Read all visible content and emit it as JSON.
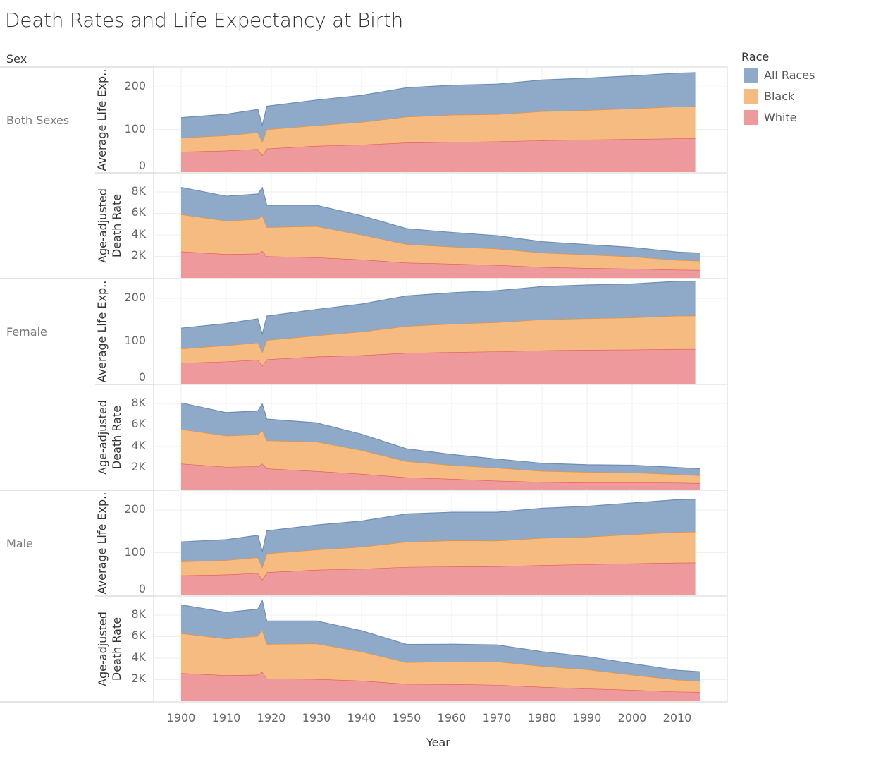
{
  "title": "Death Rates and Life Expectancy at Birth",
  "chart_data": {
    "type": "area",
    "stacked": true,
    "title": "Death Rates and Life Expectancy at Birth",
    "xlabel": "Year",
    "row_header": "Sex",
    "x_ticks": [
      "1900",
      "1910",
      "1920",
      "1930",
      "1940",
      "1950",
      "1960",
      "1970",
      "1980",
      "1990",
      "2000",
      "2010"
    ],
    "xlim": [
      1894,
      2026
    ],
    "legend": {
      "title": "Race",
      "placement": "top-right",
      "entries": [
        {
          "label": "All Races",
          "color": "#8fa9c8"
        },
        {
          "label": "Black",
          "color": "#f5bb80"
        },
        {
          "label": "White",
          "color": "#ee9a9c"
        }
      ]
    },
    "colors": {
      "All Races": {
        "fill": "#8fa9c8",
        "line": "#6e8db4"
      },
      "Black": {
        "fill": "#f5bb80",
        "line": "#f28e2b"
      },
      "White": {
        "fill": "#ee9a9c",
        "line": "#e15759"
      }
    },
    "measures": {
      "le": {
        "label": "Average Life Exp..",
        "ylim": [
          0,
          245
        ],
        "ticks": [
          {
            "v": 0,
            "t": "0"
          },
          {
            "v": 100,
            "t": "100"
          },
          {
            "v": 200,
            "t": "200"
          }
        ]
      },
      "dr": {
        "label1": "Age-adjusted",
        "label2": "Death Rate",
        "ylim": [
          0,
          9700
        ],
        "ticks": [
          {
            "v": 2000,
            "t": "2K"
          },
          {
            "v": 4000,
            "t": "4K"
          },
          {
            "v": 6000,
            "t": "6K"
          },
          {
            "v": 8000,
            "t": "8K"
          }
        ]
      }
    },
    "years_le": [
      1900,
      1910,
      1917,
      1918,
      1919,
      1930,
      1940,
      1950,
      1960,
      1970,
      1980,
      1990,
      2000,
      2010,
      2014
    ],
    "years_dr": [
      1900,
      1910,
      1917,
      1918,
      1919,
      1930,
      1940,
      1950,
      1960,
      1970,
      1980,
      1990,
      2000,
      2010,
      2015
    ],
    "panels": [
      {
        "sex": "Both Sexes",
        "measure": "le",
        "series": {
          "White": [
            47.6,
            50.3,
            54,
            39.8,
            55,
            61.4,
            64.2,
            69.1,
            70.6,
            71.7,
            74.4,
            76.1,
            77.3,
            78.9,
            79
          ],
          "Black": [
            33,
            35.6,
            39,
            31,
            45,
            48.1,
            53.1,
            60.8,
            63.6,
            64.1,
            68.1,
            69.1,
            71.8,
            74.7,
            75.6
          ],
          "All Races": [
            47.3,
            50,
            54,
            39.1,
            54.7,
            59.7,
            62.9,
            68.2,
            69.7,
            70.8,
            73.7,
            75.4,
            76.8,
            78.7,
            78.9
          ]
        }
      },
      {
        "sex": "Both Sexes",
        "measure": "dr",
        "series": {
          "White": [
            2450,
            2200,
            2250,
            2500,
            2000,
            1900,
            1700,
            1410,
            1310,
            1190,
            1010,
            910,
            850,
            750,
            730
          ],
          "Black": [
            3450,
            3100,
            3200,
            3300,
            2700,
            2900,
            2300,
            1720,
            1580,
            1520,
            1320,
            1250,
            1120,
            900,
            850
          ],
          "All Races": [
            2520,
            2300,
            2350,
            2600,
            2050,
            1950,
            1780,
            1450,
            1340,
            1220,
            1040,
            940,
            870,
            750,
            730
          ]
        }
      },
      {
        "sex": "Female",
        "measure": "le",
        "series": {
          "White": [
            48.7,
            52,
            56,
            42.2,
            57,
            63.5,
            66.6,
            72.2,
            74.1,
            75.6,
            78.1,
            79.4,
            79.9,
            81.3,
            81.4
          ],
          "Black": [
            33.5,
            37.5,
            40.5,
            32,
            45,
            49.2,
            55.3,
            62.9,
            66.3,
            68.3,
            72.5,
            73.6,
            75.1,
            78,
            78.1
          ],
          "All Races": [
            48.3,
            51.8,
            56,
            42.2,
            56.8,
            61.6,
            65.2,
            71.1,
            73.1,
            74.7,
            77.4,
            78.8,
            79.3,
            81,
            81.2
          ]
        }
      },
      {
        "sex": "Female",
        "measure": "dr",
        "series": {
          "White": [
            2400,
            2100,
            2150,
            2400,
            1950,
            1700,
            1450,
            1120,
            980,
            810,
            690,
            640,
            640,
            620,
            590
          ],
          "Black": [
            3200,
            2900,
            2950,
            3100,
            2600,
            2750,
            2200,
            1500,
            1280,
            1200,
            1030,
            980,
            930,
            780,
            720
          ],
          "All Races": [
            2450,
            2150,
            2200,
            2450,
            2000,
            1750,
            1490,
            1170,
            1000,
            830,
            720,
            680,
            690,
            650,
            620
          ]
        }
      },
      {
        "sex": "Male",
        "measure": "le",
        "series": {
          "White": [
            46.6,
            48.6,
            52,
            36.6,
            54,
            59.7,
            62.1,
            66.5,
            67.4,
            68,
            70.7,
            72.7,
            74.7,
            76.5,
            76.7
          ],
          "Black": [
            32.5,
            33.8,
            37,
            29.5,
            44,
            47.3,
            51.5,
            59.1,
            61.1,
            60,
            63.8,
            64.5,
            68.2,
            71.8,
            72.5
          ],
          "All Races": [
            46.3,
            48.4,
            52,
            36.6,
            53.5,
            58.1,
            60.8,
            65.6,
            66.6,
            67.1,
            70,
            71.8,
            74.1,
            76.2,
            76.4
          ]
        }
      },
      {
        "sex": "Male",
        "measure": "dr",
        "series": {
          "White": [
            2600,
            2400,
            2450,
            2700,
            2100,
            2050,
            1900,
            1600,
            1580,
            1510,
            1320,
            1160,
            1040,
            880,
            850
          ],
          "Black": [
            3700,
            3400,
            3600,
            3900,
            3200,
            3300,
            2700,
            2000,
            2100,
            2170,
            1930,
            1780,
            1400,
            1100,
            1030
          ],
          "All Races": [
            2650,
            2450,
            2500,
            2750,
            2150,
            2100,
            1950,
            1670,
            1610,
            1550,
            1350,
            1200,
            1050,
            890,
            860
          ]
        }
      }
    ]
  }
}
